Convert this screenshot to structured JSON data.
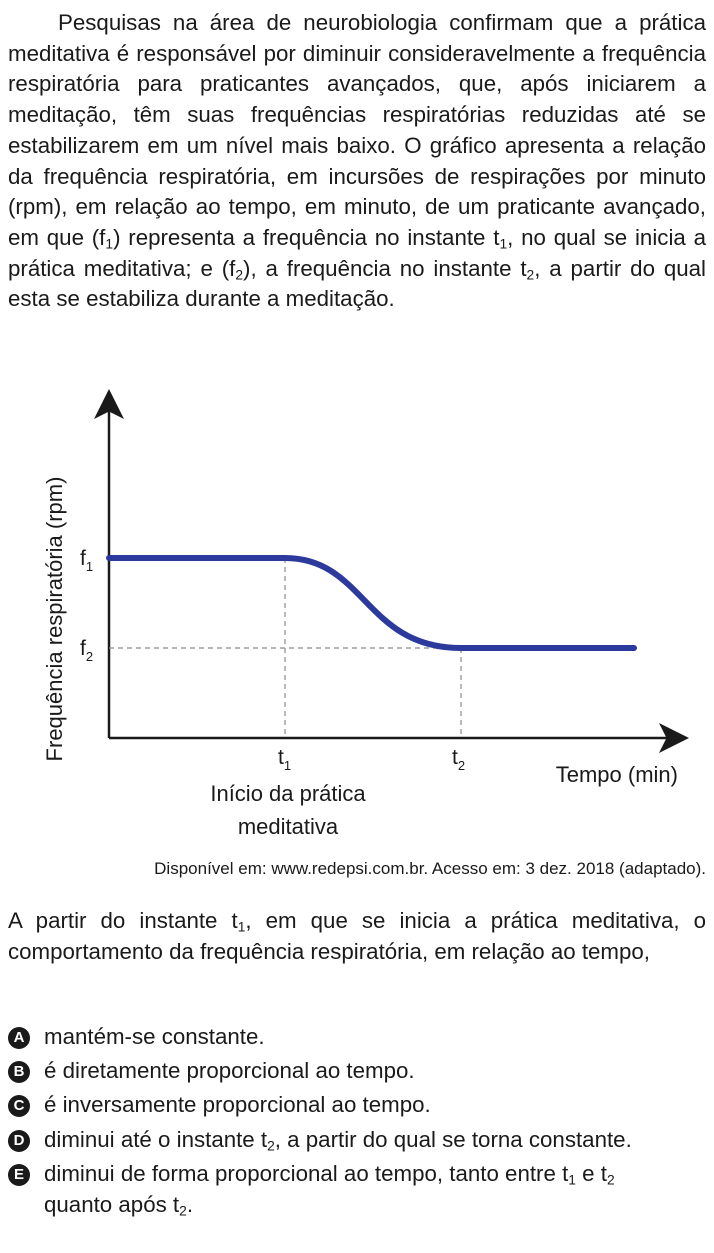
{
  "intro": {
    "p1": "Pesquisas na área de neurobiologia confirmam que a prática meditativa é responsável por diminuir consideravelmente a frequência respiratória para praticantes avançados, que, após iniciarem a meditação, têm suas frequências respiratórias reduzidas até se estabilizarem em um nível mais baixo. O gráfico apresenta a relação da frequência respiratória, em incursões de respirações por minuto (rpm), em relação ao tempo, em minuto, de um praticante avançado, em que (f",
    "p1_sub1": "1",
    "p2": ") representa a frequência no instante t",
    "p2_sub": "1",
    "p3": ", no qual se inicia a prática meditativa; e (f",
    "p3_sub": "2",
    "p4": "), a frequência no instante t",
    "p4_sub": "2",
    "p5": ", a partir do qual esta se estabiliza durante a meditação."
  },
  "chart_data": {
    "type": "line",
    "ylabel": "Frequência respiratória (rpm)",
    "xlabel": "Tempo (min)",
    "y_ticks": [
      {
        "base": "f",
        "sub": "1",
        "value": 2
      },
      {
        "base": "f",
        "sub": "2",
        "value": 1
      }
    ],
    "x_ticks": [
      {
        "base": "t",
        "sub": "1",
        "value": 1
      },
      {
        "base": "t",
        "sub": "2",
        "value": 2
      }
    ],
    "annotation_line1": "Início da prática",
    "annotation_line2": "meditativa",
    "series": [
      {
        "values_description_points": [
          [
            0,
            2
          ],
          [
            1,
            2
          ],
          [
            2,
            1
          ],
          [
            3,
            1
          ]
        ]
      }
    ],
    "line_color": "#2b3a9c"
  },
  "source": "Disponível em: www.redepsi.com.br. Acesso em: 3 dez. 2018 (adaptado).",
  "question": {
    "q1": "A partir do instante t",
    "q1_sub": "1",
    "q2": ", em que se inicia a prática meditativa, o comportamento da frequência respiratória, em relação ao tempo,"
  },
  "options": [
    {
      "letter": "A",
      "text": "mantém-se constante."
    },
    {
      "letter": "B",
      "text": "é diretamente proporcional ao tempo."
    },
    {
      "letter": "C",
      "text": "é inversamente proporcional ao tempo."
    },
    {
      "letter": "D",
      "t1": "diminui até o instante t",
      "t1_sub": "2",
      "t2": ", a partir do qual se torna constante."
    },
    {
      "letter": "E",
      "t1": "diminui de forma proporcional ao tempo, tanto entre t",
      "t1_sub": "1",
      "t2": " e t",
      "t2_sub": "2",
      "t3": " quanto após t",
      "t3_sub": "2",
      "t4": "."
    }
  ]
}
